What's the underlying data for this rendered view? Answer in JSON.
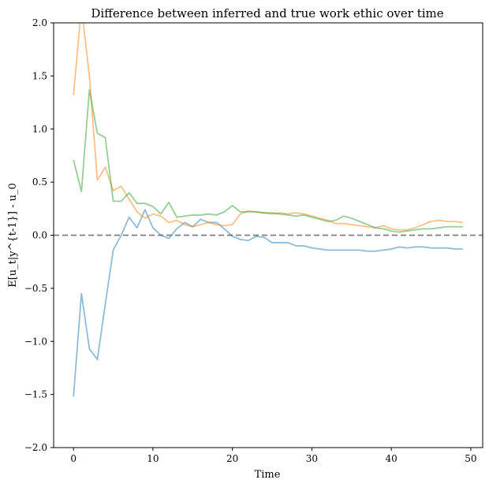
{
  "chart_data": {
    "type": "line",
    "title": "Difference between inferred and true work ethic over time",
    "xlabel": "Time",
    "ylabel": "E[u_t|y^{t-1}] - u_0",
    "xlim": [
      -2.5,
      51.5
    ],
    "ylim": [
      -2.0,
      2.0
    ],
    "x_ticks": [
      0,
      10,
      20,
      30,
      40,
      50
    ],
    "y_ticks": [
      -2.0,
      -1.5,
      -1.0,
      -0.5,
      0.0,
      0.5,
      1.0,
      1.5,
      2.0
    ],
    "x_tick_labels": [
      "0",
      "10",
      "20",
      "30",
      "40",
      "50"
    ],
    "y_tick_labels": [
      "−2.0",
      "−1.5",
      "−1.0",
      "−0.5",
      "0.0",
      "0.5",
      "1.0",
      "1.5",
      "2.0"
    ],
    "reference_line": {
      "y": 0,
      "style": "dashed",
      "color": "#7f7f7f"
    },
    "x": [
      0,
      1,
      2,
      3,
      4,
      5,
      6,
      7,
      8,
      9,
      10,
      11,
      12,
      13,
      14,
      15,
      16,
      17,
      18,
      19,
      20,
      21,
      22,
      23,
      24,
      25,
      26,
      27,
      28,
      29,
      30,
      31,
      32,
      33,
      34,
      35,
      36,
      37,
      38,
      39,
      40,
      41,
      42,
      43,
      44,
      45,
      46,
      47,
      48,
      49
    ],
    "series": [
      {
        "color": "#1f77b4",
        "values": [
          -1.52,
          -0.55,
          -1.07,
          -1.17,
          -0.65,
          -0.14,
          0.0,
          0.17,
          0.07,
          0.24,
          0.07,
          0.0,
          -0.03,
          0.06,
          0.12,
          0.08,
          0.15,
          0.12,
          0.12,
          0.06,
          -0.01,
          -0.04,
          -0.05,
          -0.01,
          -0.02,
          -0.07,
          -0.07,
          -0.07,
          -0.1,
          -0.1,
          -0.12,
          -0.13,
          -0.14,
          -0.14,
          -0.14,
          -0.14,
          -0.14,
          -0.15,
          -0.15,
          -0.14,
          -0.13,
          -0.11,
          -0.12,
          -0.11,
          -0.11,
          -0.12,
          -0.12,
          -0.12,
          -0.13,
          -0.13
        ]
      },
      {
        "color": "#ff7f0e",
        "values": [
          1.32,
          2.15,
          1.5,
          0.52,
          0.64,
          0.42,
          0.46,
          0.34,
          0.22,
          0.16,
          0.2,
          0.18,
          0.12,
          0.14,
          0.1,
          0.08,
          0.1,
          0.12,
          0.1,
          0.09,
          0.1,
          0.2,
          0.23,
          0.22,
          0.21,
          0.2,
          0.21,
          0.2,
          0.21,
          0.2,
          0.18,
          0.16,
          0.14,
          0.11,
          0.11,
          0.1,
          0.09,
          0.08,
          0.07,
          0.09,
          0.06,
          0.05,
          0.05,
          0.07,
          0.1,
          0.13,
          0.14,
          0.13,
          0.13,
          0.12
        ]
      },
      {
        "color": "#2ca02c",
        "values": [
          0.71,
          0.41,
          1.37,
          0.96,
          0.92,
          0.32,
          0.32,
          0.4,
          0.3,
          0.3,
          0.27,
          0.2,
          0.31,
          0.17,
          0.18,
          0.19,
          0.19,
          0.2,
          0.19,
          0.22,
          0.28,
          0.22,
          0.22,
          0.22,
          0.21,
          0.21,
          0.2,
          0.19,
          0.18,
          0.19,
          0.17,
          0.15,
          0.13,
          0.14,
          0.18,
          0.16,
          0.13,
          0.1,
          0.07,
          0.06,
          0.04,
          0.03,
          0.04,
          0.05,
          0.06,
          0.06,
          0.07,
          0.08,
          0.08,
          0.08
        ]
      }
    ]
  }
}
